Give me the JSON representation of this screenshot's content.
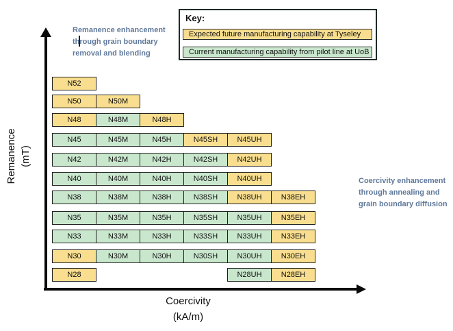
{
  "key": {
    "heading": "Key:",
    "items": [
      {
        "label": "Expected future manufacturing capability at Tyseley",
        "status": "future"
      },
      {
        "label": "Current manufacturing capability from pilot line at UoB",
        "status": "current"
      }
    ]
  },
  "axes": {
    "y_label_line1": "Remanence",
    "y_label_line2": "(mT)",
    "x_label_line1": "Coercivity",
    "x_label_line2": "(kA/m)"
  },
  "annotations": {
    "left_lines": [
      "Remanence enhancement",
      "through grain boundary",
      "removal and blending"
    ],
    "right_lines": [
      "Coercivity enhancement",
      "through annealing and",
      "grain boundary diffusion"
    ]
  },
  "colors": {
    "future": "#F8DE8E",
    "current": "#C9E7CD",
    "annotation_text": "#60799B"
  },
  "grid": {
    "column_suffixes": [
      "",
      "M",
      "H",
      "SH",
      "UH",
      "EH"
    ],
    "rows": [
      {
        "grade": "N52",
        "cells": [
          {
            "label": "N52",
            "col": 0,
            "status": "future"
          }
        ]
      },
      {
        "grade": "N50",
        "cells": [
          {
            "label": "N50",
            "col": 0,
            "status": "future"
          },
          {
            "label": "N50M",
            "col": 1,
            "status": "future"
          }
        ]
      },
      {
        "grade": "N48",
        "cells": [
          {
            "label": "N48",
            "col": 0,
            "status": "future"
          },
          {
            "label": "N48M",
            "col": 1,
            "status": "current"
          },
          {
            "label": "N48H",
            "col": 2,
            "status": "future"
          }
        ]
      },
      {
        "grade": "N45",
        "cells": [
          {
            "label": "N45",
            "col": 0,
            "status": "current"
          },
          {
            "label": "N45M",
            "col": 1,
            "status": "current"
          },
          {
            "label": "N45H",
            "col": 2,
            "status": "current"
          },
          {
            "label": "N45SH",
            "col": 3,
            "status": "future"
          },
          {
            "label": "N45UH",
            "col": 4,
            "status": "future"
          }
        ]
      },
      {
        "grade": "N42",
        "cells": [
          {
            "label": "N42",
            "col": 0,
            "status": "current"
          },
          {
            "label": "N42M",
            "col": 1,
            "status": "current"
          },
          {
            "label": "N42H",
            "col": 2,
            "status": "current"
          },
          {
            "label": "N42SH",
            "col": 3,
            "status": "current"
          },
          {
            "label": "N42UH",
            "col": 4,
            "status": "future"
          }
        ]
      },
      {
        "grade": "N40",
        "cells": [
          {
            "label": "N40",
            "col": 0,
            "status": "current"
          },
          {
            "label": "N40M",
            "col": 1,
            "status": "current"
          },
          {
            "label": "N40H",
            "col": 2,
            "status": "current"
          },
          {
            "label": "N40SH",
            "col": 3,
            "status": "current"
          },
          {
            "label": "N40UH",
            "col": 4,
            "status": "future"
          }
        ]
      },
      {
        "grade": "N38",
        "cells": [
          {
            "label": "N38",
            "col": 0,
            "status": "current"
          },
          {
            "label": "N38M",
            "col": 1,
            "status": "current"
          },
          {
            "label": "N38H",
            "col": 2,
            "status": "current"
          },
          {
            "label": "N38SH",
            "col": 3,
            "status": "current"
          },
          {
            "label": "N38UH",
            "col": 4,
            "status": "future"
          },
          {
            "label": "N38EH",
            "col": 5,
            "status": "future"
          }
        ]
      },
      {
        "grade": "N35",
        "cells": [
          {
            "label": "N35",
            "col": 0,
            "status": "current"
          },
          {
            "label": "N35M",
            "col": 1,
            "status": "current"
          },
          {
            "label": "N35H",
            "col": 2,
            "status": "current"
          },
          {
            "label": "N35SH",
            "col": 3,
            "status": "current"
          },
          {
            "label": "N35UH",
            "col": 4,
            "status": "current"
          },
          {
            "label": "N35EH",
            "col": 5,
            "status": "future"
          }
        ]
      },
      {
        "grade": "N33",
        "cells": [
          {
            "label": "N33",
            "col": 0,
            "status": "current"
          },
          {
            "label": "N33M",
            "col": 1,
            "status": "current"
          },
          {
            "label": "N33H",
            "col": 2,
            "status": "current"
          },
          {
            "label": "N33SH",
            "col": 3,
            "status": "current"
          },
          {
            "label": "N33UH",
            "col": 4,
            "status": "current"
          },
          {
            "label": "N33EH",
            "col": 5,
            "status": "future"
          }
        ]
      },
      {
        "grade": "N30",
        "cells": [
          {
            "label": "N30",
            "col": 0,
            "status": "future"
          },
          {
            "label": "N30M",
            "col": 1,
            "status": "current"
          },
          {
            "label": "N30H",
            "col": 2,
            "status": "current"
          },
          {
            "label": "N30SH",
            "col": 3,
            "status": "current"
          },
          {
            "label": "N30UH",
            "col": 4,
            "status": "current"
          },
          {
            "label": "N30EH",
            "col": 5,
            "status": "future"
          }
        ]
      },
      {
        "grade": "N28",
        "cells": [
          {
            "label": "N28",
            "col": 0,
            "status": "future"
          },
          {
            "label": "N28UH",
            "col": 4,
            "status": "current"
          },
          {
            "label": "N28EH",
            "col": 5,
            "status": "future"
          }
        ]
      }
    ]
  }
}
